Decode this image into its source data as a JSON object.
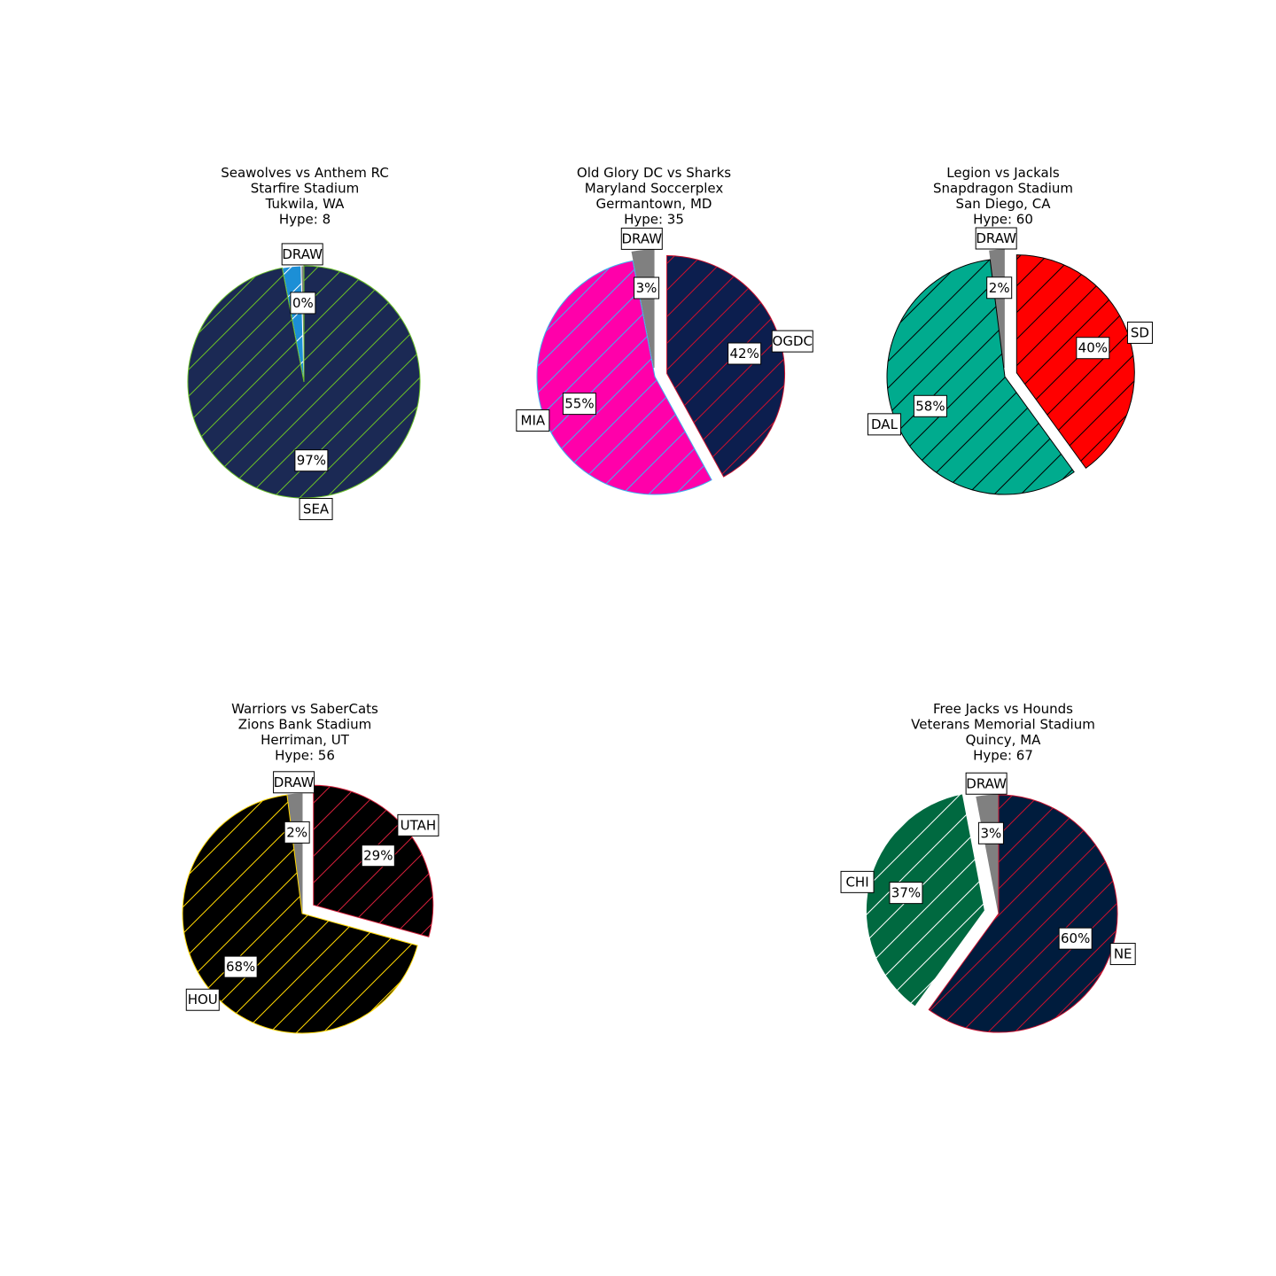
{
  "chart_data": [
    {
      "type": "pie",
      "title": [
        "Seawolves vs Anthem RC",
        "Starfire Stadium",
        "Tukwila, WA",
        "Hype: 8"
      ],
      "slices": [
        {
          "label": "DRAW",
          "value": 0.4,
          "pct_label": "0%",
          "color": "#808080",
          "edge": "#ffffff",
          "hatch": "#808080"
        },
        {
          "label": "",
          "value": 2.6,
          "pct_label": "",
          "color": "#1c8fd6",
          "edge": "#ffffff",
          "hatch": "#ffffff"
        },
        {
          "label": "SEA",
          "value": 97,
          "pct_label": "97%",
          "color": "#1b2954",
          "edge": "#69be28",
          "hatch": "#69be28"
        }
      ]
    },
    {
      "type": "pie",
      "title": [
        "Old Glory DC vs Sharks",
        "Maryland Soccerplex",
        "Germantown, MD",
        "Hype: 35"
      ],
      "slices": [
        {
          "label": "DRAW",
          "value": 3,
          "pct_label": "3%",
          "color": "#808080",
          "edge": "#808080",
          "hatch": "#808080"
        },
        {
          "label": "MIA",
          "value": 55,
          "pct_label": "55%",
          "color": "#ff00aa",
          "edge": "#3cb0f0",
          "hatch": "#3cb0f0"
        },
        {
          "label": "OGDC",
          "value": 42,
          "pct_label": "42%",
          "color": "#0c1e4e",
          "edge": "#c8102e",
          "hatch": "#c8102e"
        }
      ]
    },
    {
      "type": "pie",
      "title": [
        "Legion vs Jackals",
        "Snapdragon Stadium",
        "San Diego, CA",
        "Hype: 60"
      ],
      "slices": [
        {
          "label": "DRAW",
          "value": 2,
          "pct_label": "2%",
          "color": "#808080",
          "edge": "#808080",
          "hatch": "#808080"
        },
        {
          "label": "DAL",
          "value": 58,
          "pct_label": "58%",
          "color": "#00ab8e",
          "edge": "#000000",
          "hatch": "#000000"
        },
        {
          "label": "SD",
          "value": 40,
          "pct_label": "40%",
          "color": "#ff0000",
          "edge": "#000000",
          "hatch": "#000000"
        }
      ]
    },
    {
      "type": "pie",
      "title": [
        "Warriors vs SaberCats",
        "Zions Bank Stadium",
        "Herriman, UT",
        "Hype: 56"
      ],
      "slices": [
        {
          "label": "DRAW",
          "value": 2,
          "pct_label": "2%",
          "color": "#808080",
          "edge": "#808080",
          "hatch": "#808080"
        },
        {
          "label": "HOU",
          "value": 68,
          "pct_label": "68%",
          "color": "#000000",
          "edge": "#ffd700",
          "hatch": "#ffd700"
        },
        {
          "label": "UTAH",
          "value": 29,
          "pct_label": "29%",
          "color": "#000000",
          "edge": "#d41f3a",
          "hatch": "#d41f3a"
        }
      ]
    },
    {
      "type": "pie",
      "title": [
        "Free Jacks vs Hounds",
        "Veterans Memorial Stadium",
        "Quincy, MA",
        "Hype: 67"
      ],
      "slices": [
        {
          "label": "DRAW",
          "value": 3,
          "pct_label": "3%",
          "color": "#808080",
          "edge": "#808080",
          "hatch": "#808080"
        },
        {
          "label": "CHI",
          "value": 37,
          "pct_label": "37%",
          "color": "#006940",
          "edge": "#ffffff",
          "hatch": "#ffffff"
        },
        {
          "label": "NE",
          "value": 60,
          "pct_label": "60%",
          "color": "#001c3d",
          "edge": "#c8102e",
          "hatch": "#c8102e"
        }
      ]
    }
  ]
}
